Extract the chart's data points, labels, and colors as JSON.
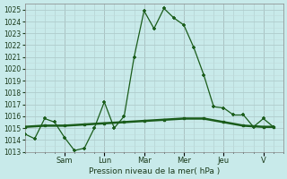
{
  "xlabel": "Pression niveau de la mer( hPa )",
  "bg_color": "#c8eaea",
  "grid_color_major": "#b0cccc",
  "grid_color_minor": "#c0dada",
  "line_color": "#1a5c1a",
  "ylim": [
    1013,
    1025.5
  ],
  "yticks": [
    1013,
    1014,
    1015,
    1016,
    1017,
    1018,
    1019,
    1020,
    1021,
    1022,
    1023,
    1024,
    1025
  ],
  "day_labels": [
    "Sam",
    "Lun",
    "Mar",
    "Mer",
    "Jeu",
    "V"
  ],
  "day_positions": [
    4,
    8,
    12,
    16,
    20,
    24
  ],
  "xlim": [
    0,
    26
  ],
  "line1_x": [
    0,
    1,
    2,
    3,
    4,
    5,
    6,
    7,
    8,
    9,
    10,
    11,
    12,
    13,
    14,
    15,
    16,
    17,
    18,
    19,
    20,
    21,
    22,
    23,
    24,
    25
  ],
  "line1_y": [
    1014.5,
    1014.1,
    1015.8,
    1015.5,
    1014.2,
    1013.1,
    1013.3,
    1015.0,
    1017.2,
    1015.0,
    1016.0,
    1021.0,
    1024.9,
    1023.4,
    1025.1,
    1024.3,
    1023.7,
    1021.8,
    1019.5,
    1016.8,
    1016.7,
    1016.1,
    1016.1,
    1015.1,
    1015.8,
    1015.1
  ],
  "line2_x": [
    0,
    2,
    4,
    6,
    8,
    10,
    12,
    14,
    16,
    18,
    20,
    22,
    24,
    25
  ],
  "line2_y": [
    1015.1,
    1015.2,
    1015.2,
    1015.3,
    1015.4,
    1015.5,
    1015.6,
    1015.7,
    1015.8,
    1015.8,
    1015.5,
    1015.2,
    1015.1,
    1015.1
  ],
  "xlabel_fontsize": 6.5,
  "ytick_fontsize": 5.5,
  "xtick_fontsize": 6.0
}
